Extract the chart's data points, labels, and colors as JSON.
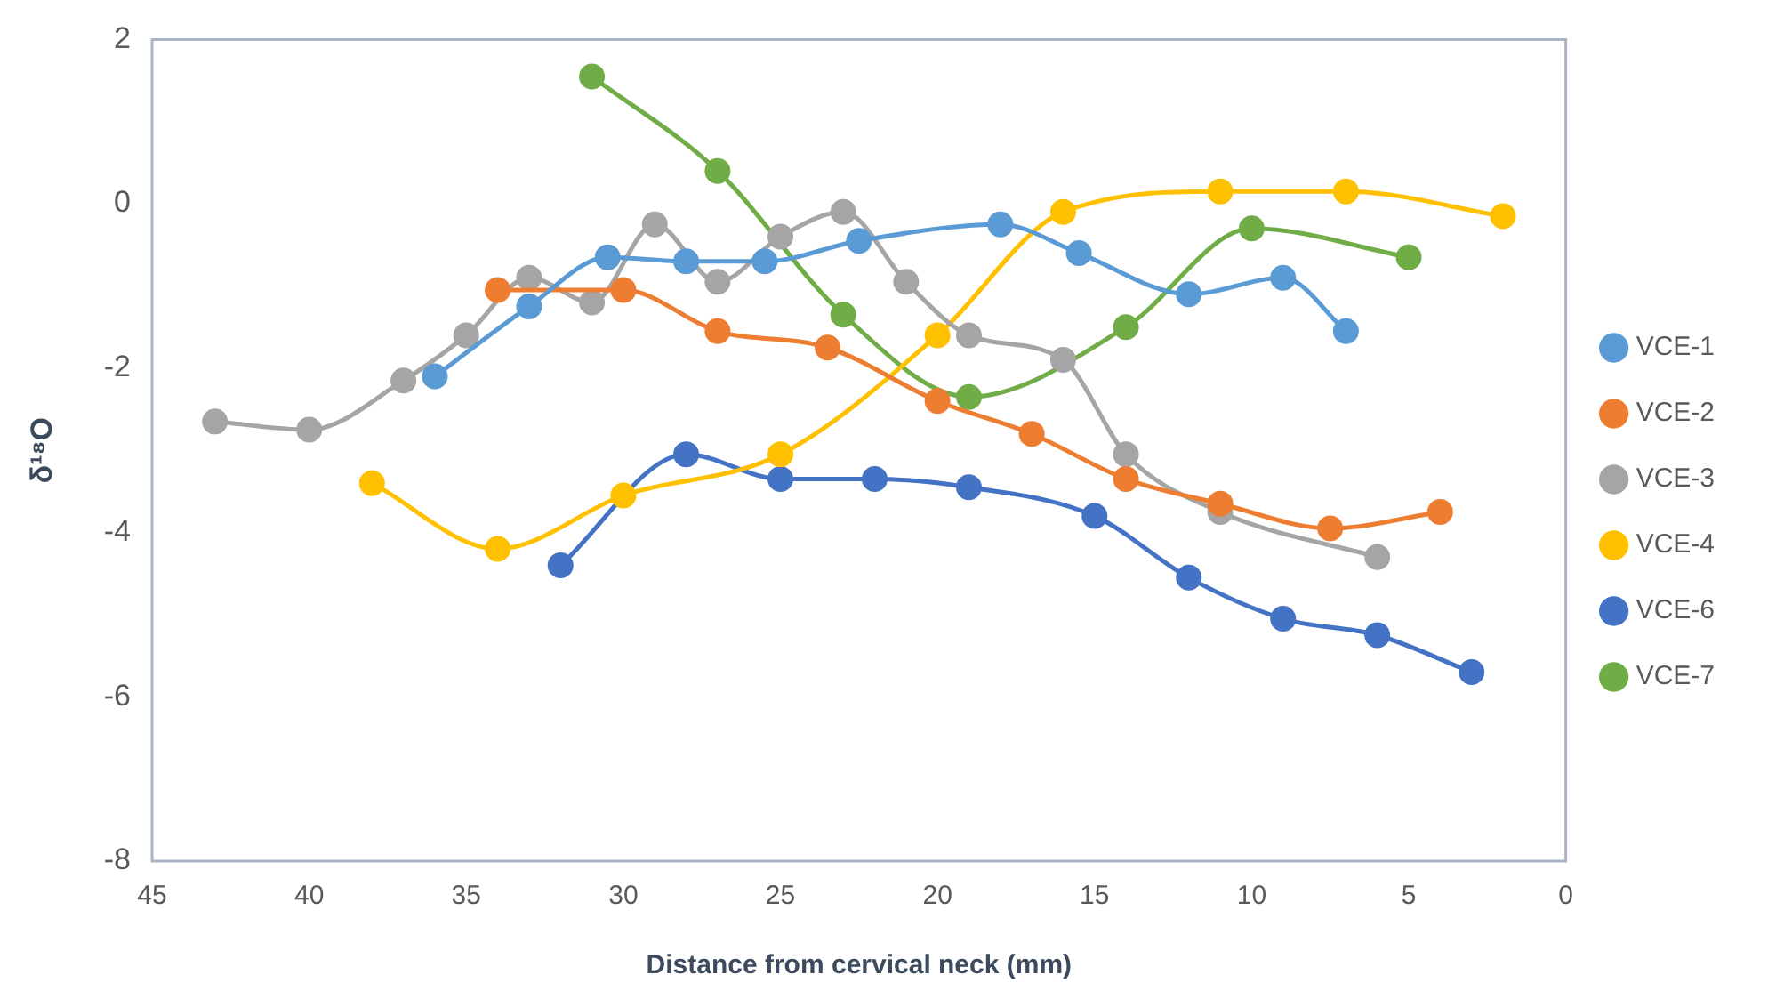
{
  "chart_data": {
    "type": "line",
    "xlabel": "Distance from cervical neck (mm)",
    "ylabel": "δ¹⁸O",
    "xlim": [
      45,
      0
    ],
    "xticks": [
      45,
      40,
      35,
      30,
      25,
      20,
      15,
      10,
      5,
      0
    ],
    "ylim": [
      -8,
      2
    ],
    "yticks": [
      -8,
      -6,
      -4,
      -2,
      0,
      2
    ],
    "grid": false,
    "legend": "right",
    "marker": "circle",
    "series": [
      {
        "name": "VCE-1",
        "color": "#5b9bd5",
        "x": [
          36,
          33,
          30.5,
          28,
          25.5,
          22.5,
          18,
          15.5,
          12,
          9,
          7
        ],
        "values": [
          -2.1,
          -1.25,
          -0.65,
          -0.7,
          -0.7,
          -0.45,
          -0.25,
          -0.6,
          -1.1,
          -0.9,
          -1.55
        ]
      },
      {
        "name": "VCE-2",
        "color": "#ed7d31",
        "x": [
          34,
          30,
          27,
          23.5,
          20,
          17,
          14,
          11,
          7.5,
          4
        ],
        "values": [
          -1.05,
          -1.05,
          -1.55,
          -1.75,
          -2.4,
          -2.8,
          -3.35,
          -3.65,
          -3.95,
          -3.75
        ]
      },
      {
        "name": "VCE-3",
        "color": "#a5a5a5",
        "x": [
          43,
          40,
          37,
          35,
          33,
          31,
          29,
          27,
          25,
          23,
          21,
          19,
          16,
          14,
          11,
          6
        ],
        "values": [
          -2.65,
          -2.75,
          -2.15,
          -1.6,
          -0.9,
          -1.2,
          -0.25,
          -0.95,
          -0.4,
          -0.1,
          -0.95,
          -1.6,
          -1.9,
          -3.05,
          -3.75,
          -4.3
        ]
      },
      {
        "name": "VCE-4",
        "color": "#ffc000",
        "x": [
          38,
          34,
          30,
          25,
          20,
          16,
          11,
          7,
          2
        ],
        "values": [
          -3.4,
          -4.2,
          -3.55,
          -3.05,
          -1.6,
          -0.1,
          0.15,
          0.15,
          -0.15
        ]
      },
      {
        "name": "VCE-6",
        "color": "#4472c4",
        "x": [
          32,
          28,
          25,
          22,
          19,
          15,
          12,
          9,
          6,
          3
        ],
        "values": [
          -4.4,
          -3.05,
          -3.35,
          -3.35,
          -3.45,
          -3.8,
          -4.55,
          -5.05,
          -5.25,
          -5.7
        ]
      },
      {
        "name": "VCE-7",
        "color": "#70ad47",
        "x": [
          31,
          27,
          23,
          19,
          14,
          10,
          5
        ],
        "values": [
          1.55,
          0.4,
          -1.35,
          -2.35,
          -1.5,
          -0.3,
          -0.65
        ]
      }
    ]
  }
}
